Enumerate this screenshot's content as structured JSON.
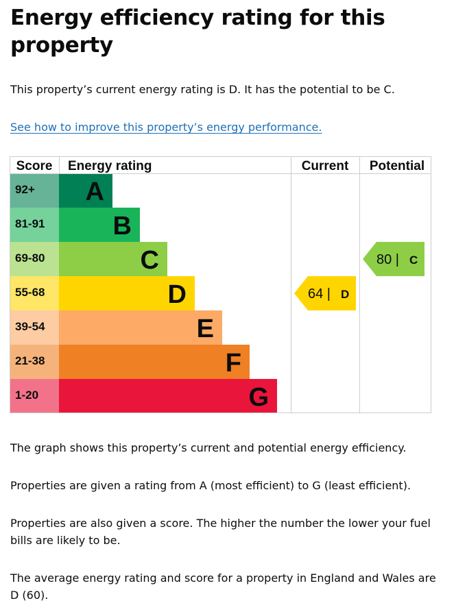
{
  "page": {
    "title": "Energy efficiency rating for this property",
    "intro": "This property’s current energy rating is D. It has the potential to be C.",
    "improve_link": "See how to improve this property’s energy performance.",
    "footer_paragraphs": [
      "The graph shows this property’s current and potential energy efficiency.",
      "Properties are given a rating from A (most efficient) to G (least efficient).",
      "Properties are also given a score. The higher the number the lower your fuel bills are likely to be.",
      "The average energy rating and score for a property in England and Wales are D (60)."
    ]
  },
  "chart": {
    "headers": {
      "score": "Score",
      "rating": "Energy rating",
      "current": "Current",
      "potential": "Potential"
    },
    "bands": [
      {
        "letter": "A",
        "range": "92+",
        "color": "#008054",
        "score_bg": "#66b398"
      },
      {
        "letter": "B",
        "range": "81-91",
        "color": "#19b459",
        "score_bg": "#75d29b"
      },
      {
        "letter": "C",
        "range": "69-80",
        "color": "#8dce46",
        "score_bg": "#bbe290"
      },
      {
        "letter": "D",
        "range": "55-68",
        "color": "#ffd500",
        "score_bg": "#ffe666"
      },
      {
        "letter": "E",
        "range": "39-54",
        "color": "#fcaa65",
        "score_bg": "#fdcca3"
      },
      {
        "letter": "F",
        "range": "21-38",
        "color": "#ef8023",
        "score_bg": "#f5b37b"
      },
      {
        "letter": "G",
        "range": "1-20",
        "color": "#e9153b",
        "score_bg": "#f27389"
      }
    ],
    "current": {
      "score": 64,
      "letter": "D",
      "label": "64 |",
      "color": "#ffd500"
    },
    "potential": {
      "score": 80,
      "letter": "C",
      "label": "80 |",
      "color": "#8dce46"
    }
  }
}
